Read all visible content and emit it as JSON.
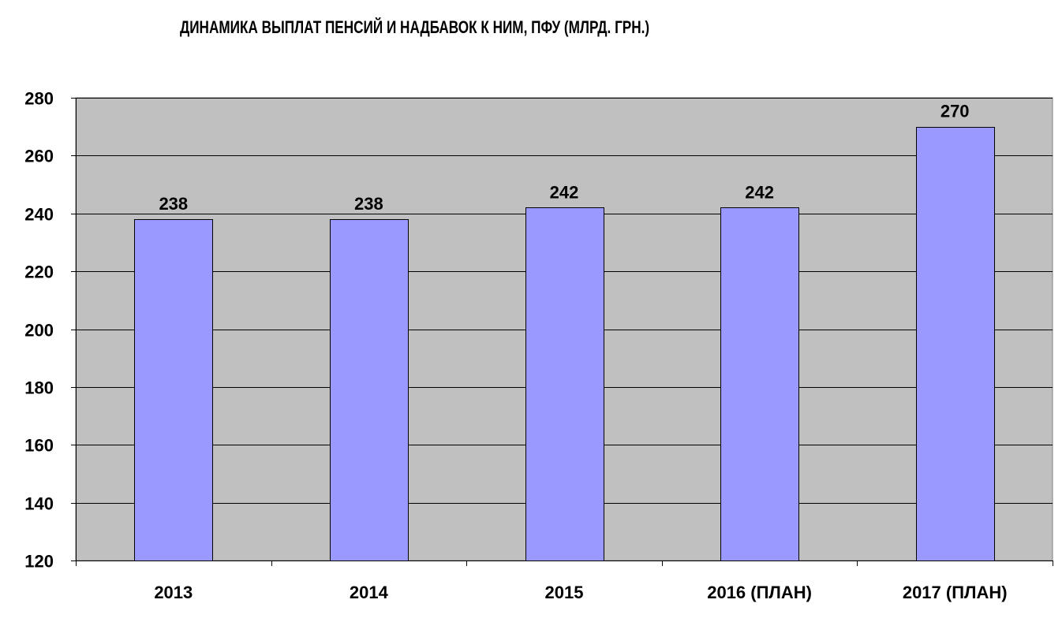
{
  "chart_data": {
    "type": "bar",
    "title": "ДИНАМИКА ВЫПЛАТ ПЕНСИЙ И НАДБАВОК К НИМ, ПФУ (МЛРД. ГРН.)",
    "categories": [
      "2013",
      "2014",
      "2015",
      "2016 (ПЛАН)",
      "2017 (ПЛАН)"
    ],
    "values": [
      238,
      238,
      242,
      242,
      270
    ],
    "data_labels": [
      "238",
      "238",
      "242",
      "242",
      "270"
    ],
    "ylim": [
      120,
      280
    ],
    "y_ticks": [
      120,
      140,
      160,
      180,
      200,
      220,
      240,
      260,
      280
    ],
    "grid": true,
    "legend": "none",
    "colors": {
      "plot_background": "#c0c0c0",
      "bar_fill": "#9999ff",
      "bar_stroke": "#000000",
      "grid": "#000000"
    }
  }
}
